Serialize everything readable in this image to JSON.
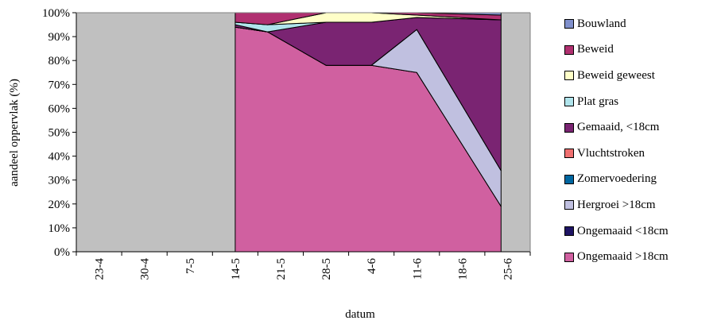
{
  "chart_data": {
    "type": "area",
    "stacked": true,
    "xlabel": "datum",
    "ylabel": "aandeel oppervlak (%)",
    "x_ticks": [
      "23-4",
      "30-4",
      "7-5",
      "14-5",
      "21-5",
      "28-5",
      "4-6",
      "11-6",
      "18-6",
      "25-6"
    ],
    "y_ticks": [
      "0%",
      "10%",
      "20%",
      "30%",
      "40%",
      "50%",
      "60%",
      "70%",
      "80%",
      "90%",
      "100%"
    ],
    "ylim": [
      0,
      100
    ],
    "grid": false,
    "legend_position": "right",
    "background_color": "#c0c0c0",
    "no_data_ranges": [
      [
        "23-4",
        "14-5"
      ],
      [
        "25-6",
        "25-6"
      ]
    ],
    "x": [
      "14-5",
      "19-5",
      "28-5",
      "4-6",
      "11-6",
      "24-6"
    ],
    "series": [
      {
        "name": "Ongemaaid >18cm",
        "color": "#d060a0",
        "values": [
          94,
          92,
          78,
          78,
          75,
          19
        ]
      },
      {
        "name": "Ongemaaid <18cm",
        "color": "#1e1464",
        "values": [
          0,
          0,
          0,
          0,
          0,
          0
        ]
      },
      {
        "name": "Hergroei >18cm",
        "color": "#c0c0e0",
        "values": [
          0,
          0,
          0,
          0,
          18,
          15
        ]
      },
      {
        "name": "Zomervoedering",
        "color": "#0066a0",
        "values": [
          0,
          0,
          0,
          0,
          0,
          0
        ]
      },
      {
        "name": "Vluchtstroken",
        "color": "#f07070",
        "values": [
          0,
          0,
          0,
          0,
          0,
          0
        ]
      },
      {
        "name": "Gemaaid, <18cm",
        "color": "#7a2472",
        "values": [
          1,
          0,
          18,
          18,
          5,
          63
        ]
      },
      {
        "name": "Plat gras",
        "color": "#b0e4ec",
        "values": [
          1,
          3,
          0,
          0,
          0,
          0
        ]
      },
      {
        "name": "Beweid geweest",
        "color": "#ffffc8",
        "values": [
          0,
          0,
          4,
          4,
          1,
          0
        ]
      },
      {
        "name": "Beweid",
        "color": "#b03070",
        "values": [
          4,
          5,
          0,
          0,
          1,
          2
        ]
      },
      {
        "name": "Bouwland",
        "color": "#8090cc",
        "values": [
          0,
          0,
          0,
          0,
          0,
          1
        ]
      }
    ]
  }
}
